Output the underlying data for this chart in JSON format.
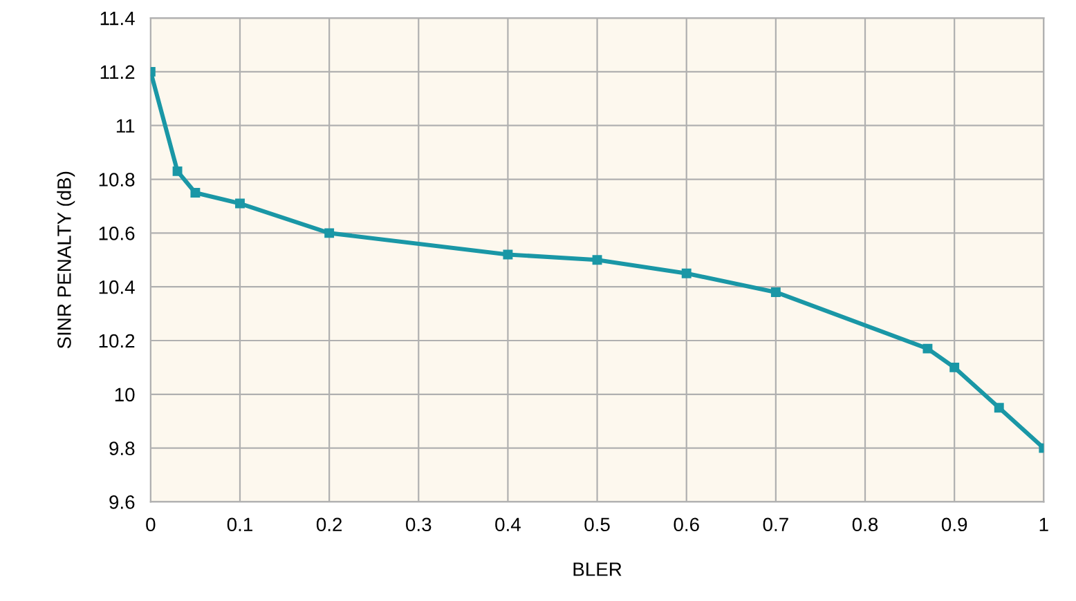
{
  "chart_data": {
    "type": "line",
    "xlabel": "BLER",
    "ylabel": "SINR PENALTY (dB)",
    "x": [
      0,
      0.03,
      0.05,
      0.1,
      0.2,
      0.4,
      0.5,
      0.6,
      0.7,
      0.87,
      0.9,
      0.95,
      1.0
    ],
    "series": [
      {
        "color": "#1a97a6",
        "values": [
          11.2,
          10.83,
          10.75,
          10.71,
          10.6,
          10.52,
          10.5,
          10.45,
          10.38,
          10.17,
          10.1,
          9.95,
          9.8
        ]
      }
    ],
    "xlim": [
      0,
      1
    ],
    "xticks": [
      0,
      0.1,
      0.2,
      0.3,
      0.4,
      0.5,
      0.6,
      0.7,
      0.8,
      0.9,
      1
    ],
    "ylim": [
      9.6,
      11.4
    ],
    "yticks": [
      9.6,
      9.8,
      10,
      10.2,
      10.4,
      10.6,
      10.8,
      11,
      11.2,
      11.4
    ],
    "grid": true,
    "marker": "square",
    "line_style": "solid"
  }
}
